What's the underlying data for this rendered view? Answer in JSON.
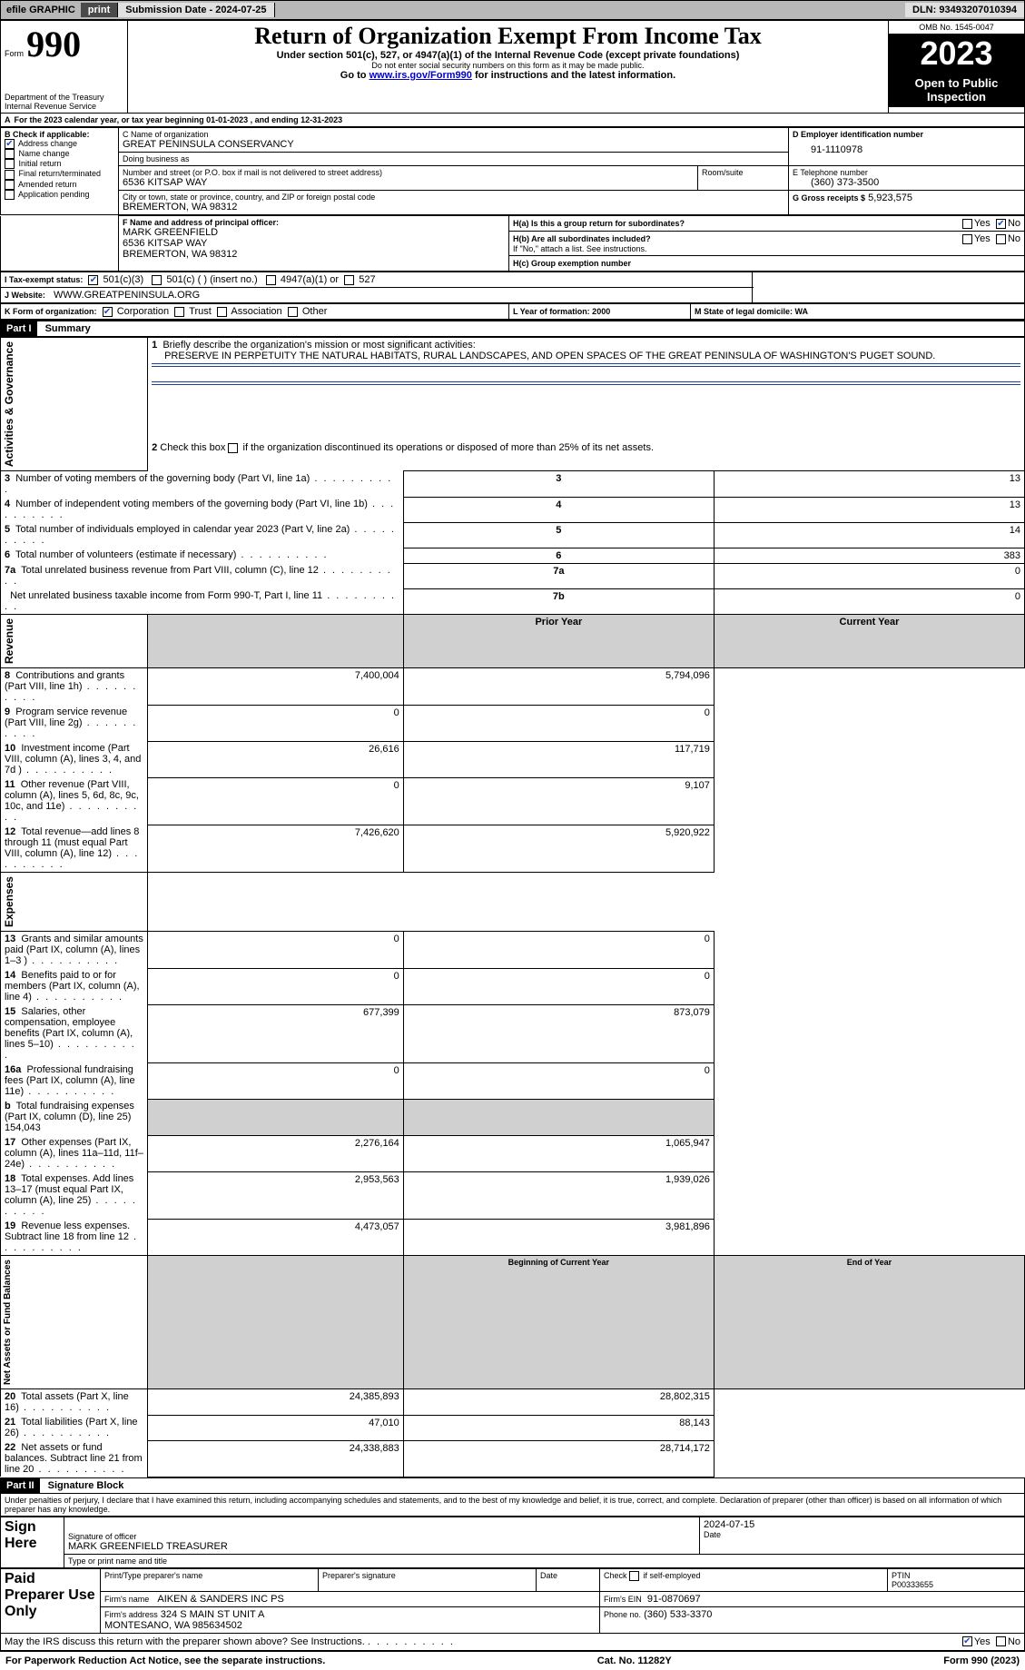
{
  "topbar": {
    "efile": "efile GRAPHIC",
    "print": "print",
    "submission_label": "Submission Date - 2024-07-25",
    "dln_label": "DLN: 93493207010394"
  },
  "header": {
    "form_label": "Form",
    "form_no": "990",
    "title": "Return of Organization Exempt From Income Tax",
    "subtitle": "Under section 501(c), 527, or 4947(a)(1) of the Internal Revenue Code (except private foundations)",
    "ssn_note": "Do not enter social security numbers on this form as it may be made public.",
    "goto_pre": "Go to ",
    "goto_link": "www.irs.gov/Form990",
    "goto_post": " for instructions and the latest information.",
    "dept": "Department of the Treasury\nInternal Revenue Service",
    "omb": "OMB No. 1545-0047",
    "year": "2023",
    "open": "Open to Public Inspection"
  },
  "periodA": {
    "line": "For the 2023 calendar year, or tax year beginning 01-01-2023   , and ending 12-31-2023"
  },
  "boxB": {
    "label": "B Check if applicable:",
    "items": [
      {
        "txt": "Address change",
        "chk": true
      },
      {
        "txt": "Name change",
        "chk": false
      },
      {
        "txt": "Initial return",
        "chk": false
      },
      {
        "txt": "Final return/terminated",
        "chk": false
      },
      {
        "txt": "Amended return",
        "chk": false
      },
      {
        "txt": "Application pending",
        "chk": false
      }
    ]
  },
  "boxC": {
    "name_lbl": "C Name of organization",
    "name": "GREAT PENINSULA CONSERVANCY",
    "dba_lbl": "Doing business as",
    "dba": "",
    "street_lbl": "Number and street (or P.O. box if mail is not delivered to street address)",
    "street": "6536 KITSAP WAY",
    "room_lbl": "Room/suite",
    "city_lbl": "City or town, state or province, country, and ZIP or foreign postal code",
    "city": "BREMERTON, WA  98312"
  },
  "boxD": {
    "lbl": "D Employer identification number",
    "val": "91-1110978"
  },
  "boxE": {
    "lbl": "E Telephone number",
    "val": "(360) 373-3500"
  },
  "boxG": {
    "lbl": "G Gross receipts $",
    "val": "5,923,575"
  },
  "boxF": {
    "lbl": "F  Name and address of principal officer:",
    "name": "MARK GREENFIELD",
    "street": "6536 KITSAP WAY",
    "city": "BREMERTON, WA  98312"
  },
  "boxH": {
    "a_lbl": "H(a)  Is this a group return for subordinates?",
    "a_yes": "Yes",
    "a_no": "No",
    "b_lbl": "H(b)  Are all subordinates included?",
    "b_note": "If \"No,\" attach a list. See instructions.",
    "c_lbl": "H(c)  Group exemption number"
  },
  "boxI": {
    "lbl": "I    Tax-exempt status:",
    "c3": "501(c)(3)",
    "c": "501(c) (  ) (insert no.)",
    "a1": "4947(a)(1) or",
    "s527": "527"
  },
  "boxJ": {
    "lbl": "J    Website:",
    "val": "WWW.GREATPENINSULA.ORG"
  },
  "boxK": {
    "lbl": "K Form of organization:",
    "corp": "Corporation",
    "trust": "Trust",
    "assoc": "Association",
    "other": "Other"
  },
  "boxL": {
    "lbl": "L Year of formation: 2000"
  },
  "boxM": {
    "lbl": "M State of legal domicile: WA"
  },
  "part1": {
    "hdr": "Part I",
    "title": "Summary",
    "sect_gov": "Activities & Governance",
    "sect_rev": "Revenue",
    "sect_exp": "Expenses",
    "sect_net": "Net Assets or Fund Balances",
    "l1_lbl": "Briefly describe the organization's mission or most significant activities:",
    "l1_txt": "PRESERVE IN PERPETUITY THE NATURAL HABITATS, RURAL LANDSCAPES, AND OPEN SPACES OF THE GREAT PENINSULA OF WASHINGTON'S PUGET SOUND.",
    "l2": "Check this box         if the organization discontinued its operations or disposed of more than 25% of its net assets.",
    "rows_gov": [
      {
        "n": "3",
        "t": "Number of voting members of the governing body (Part VI, line 1a)",
        "k": "3",
        "v": "13"
      },
      {
        "n": "4",
        "t": "Number of independent voting members of the governing body (Part VI, line 1b)",
        "k": "4",
        "v": "13"
      },
      {
        "n": "5",
        "t": "Total number of individuals employed in calendar year 2023 (Part V, line 2a)",
        "k": "5",
        "v": "14"
      },
      {
        "n": "6",
        "t": "Total number of volunteers (estimate if necessary)",
        "k": "6",
        "v": "383"
      },
      {
        "n": "7a",
        "t": "Total unrelated business revenue from Part VIII, column (C), line 12",
        "k": "7a",
        "v": "0"
      },
      {
        "n": "",
        "t": "Net unrelated business taxable income from Form 990-T, Part I, line 11",
        "k": "7b",
        "v": "0"
      }
    ],
    "py_hdr": "Prior Year",
    "cy_hdr": "Current Year",
    "rows_rev": [
      {
        "n": "8",
        "t": "Contributions and grants (Part VIII, line 1h)",
        "py": "7,400,004",
        "cy": "5,794,096"
      },
      {
        "n": "9",
        "t": "Program service revenue (Part VIII, line 2g)",
        "py": "0",
        "cy": "0"
      },
      {
        "n": "10",
        "t": "Investment income (Part VIII, column (A), lines 3, 4, and 7d )",
        "py": "26,616",
        "cy": "117,719"
      },
      {
        "n": "11",
        "t": "Other revenue (Part VIII, column (A), lines 5, 6d, 8c, 9c, 10c, and 11e)",
        "py": "0",
        "cy": "9,107"
      },
      {
        "n": "12",
        "t": "Total revenue—add lines 8 through 11 (must equal Part VIII, column (A), line 12)",
        "py": "7,426,620",
        "cy": "5,920,922"
      }
    ],
    "rows_exp": [
      {
        "n": "13",
        "t": "Grants and similar amounts paid (Part IX, column (A), lines 1–3 )",
        "py": "0",
        "cy": "0"
      },
      {
        "n": "14",
        "t": "Benefits paid to or for members (Part IX, column (A), line 4)",
        "py": "0",
        "cy": "0"
      },
      {
        "n": "15",
        "t": "Salaries, other compensation, employee benefits (Part IX, column (A), lines 5–10)",
        "py": "677,399",
        "cy": "873,079"
      },
      {
        "n": "16a",
        "t": "Professional fundraising fees (Part IX, column (A), line 11e)",
        "py": "0",
        "cy": "0"
      },
      {
        "n": "b",
        "t": "Total fundraising expenses (Part IX, column (D), line 25) 154,043",
        "py": "",
        "cy": "",
        "shade": true
      },
      {
        "n": "17",
        "t": "Other expenses (Part IX, column (A), lines 11a–11d, 11f–24e)",
        "py": "2,276,164",
        "cy": "1,065,947"
      },
      {
        "n": "18",
        "t": "Total expenses. Add lines 13–17 (must equal Part IX, column (A), line 25)",
        "py": "2,953,563",
        "cy": "1,939,026"
      },
      {
        "n": "19",
        "t": "Revenue less expenses. Subtract line 18 from line 12",
        "py": "4,473,057",
        "cy": "3,981,896"
      }
    ],
    "boy_hdr": "Beginning of Current Year",
    "eoy_hdr": "End of Year",
    "rows_net": [
      {
        "n": "20",
        "t": "Total assets (Part X, line 16)",
        "py": "24,385,893",
        "cy": "28,802,315"
      },
      {
        "n": "21",
        "t": "Total liabilities (Part X, line 26)",
        "py": "47,010",
        "cy": "88,143"
      },
      {
        "n": "22",
        "t": "Net assets or fund balances. Subtract line 21 from line 20",
        "py": "24,338,883",
        "cy": "28,714,172"
      }
    ]
  },
  "part2": {
    "hdr": "Part II",
    "title": "Signature Block",
    "penalty": "Under penalties of perjury, I declare that I have examined this return, including accompanying schedules and statements, and to the best of my knowledge and belief, it is true, correct, and complete. Declaration of preparer (other than officer) is based on all information of which preparer has any knowledge.",
    "sign_here": "Sign Here",
    "sig_officer": "Signature of officer",
    "officer": "MARK GREENFIELD TREASURER",
    "type_name": "Type or print name and title",
    "date_lbl": "Date",
    "date": "2024-07-15",
    "paid": "Paid Preparer Use Only",
    "prep_name_lbl": "Print/Type preparer's name",
    "prep_sig_lbl": "Preparer's signature",
    "self_lbl": "Check        if self-employed",
    "ptin_lbl": "PTIN",
    "ptin": "P00333655",
    "firm_name_lbl": "Firm's name",
    "firm_name": "AIKEN & SANDERS INC PS",
    "firm_ein_lbl": "Firm's EIN",
    "firm_ein": "91-0870697",
    "firm_addr_lbl": "Firm's address",
    "firm_addr": "324 S MAIN ST UNIT A\nMONTESANO, WA  985634502",
    "phone_lbl": "Phone no.",
    "phone": "(360) 533-3370",
    "discuss": "May the IRS discuss this return with the preparer shown above? See Instructions.",
    "d_yes": "Yes",
    "d_no": "No"
  },
  "footer": {
    "pra": "For Paperwork Reduction Act Notice, see the separate instructions.",
    "cat": "Cat. No. 11282Y",
    "form": "Form 990 (2023)"
  }
}
